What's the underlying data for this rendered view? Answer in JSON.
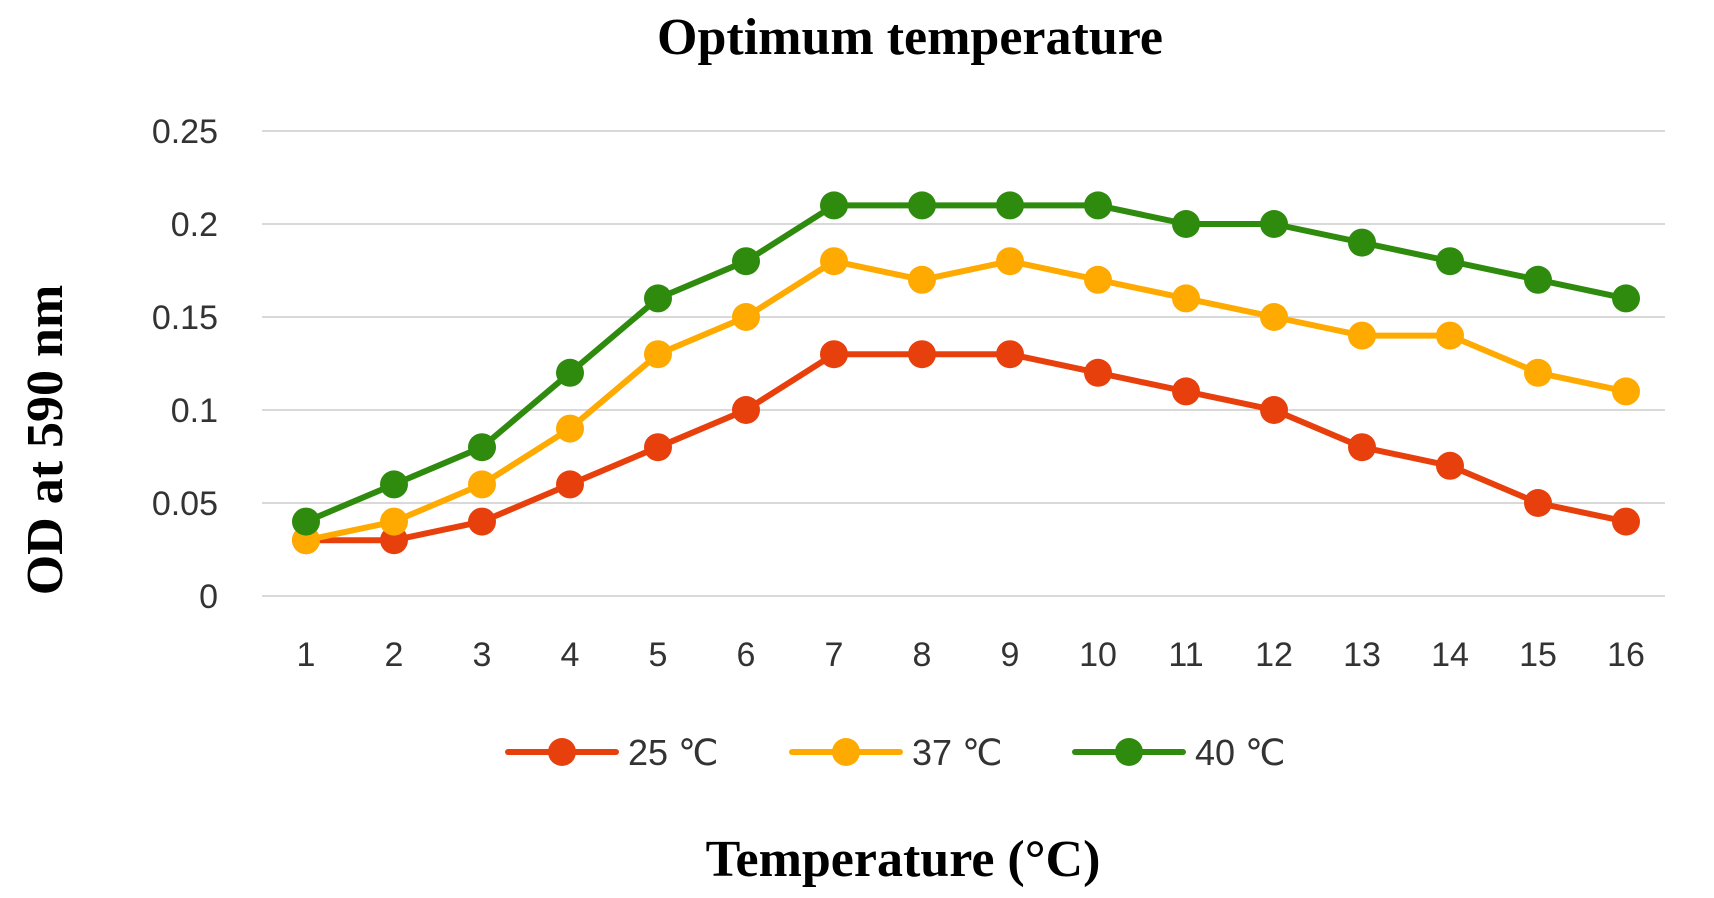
{
  "chart_data": {
    "type": "line",
    "title": "Optimum temperature",
    "xlabel": "Temperature (°C)",
    "ylabel": "OD at 590 nm",
    "x": [
      1,
      2,
      3,
      4,
      5,
      6,
      7,
      8,
      9,
      10,
      11,
      12,
      13,
      14,
      15,
      16
    ],
    "x_tick_labels": [
      "1",
      "2",
      "3",
      "4",
      "5",
      "6",
      "7",
      "8",
      "9",
      "10",
      "11",
      "12",
      "13",
      "14",
      "15",
      "16"
    ],
    "ylim": [
      0,
      0.25
    ],
    "y_ticks": [
      0,
      0.05,
      0.1,
      0.15,
      0.2,
      0.25
    ],
    "y_tick_labels": [
      "0",
      "0.05",
      "0.1",
      "0.15",
      "0.2",
      "0.25"
    ],
    "grid": "horizontal",
    "legend_position": "bottom",
    "series": [
      {
        "name": "25 ℃",
        "color": "#e8400c",
        "values": [
          0.03,
          0.03,
          0.04,
          0.06,
          0.08,
          0.1,
          0.13,
          0.13,
          0.13,
          0.12,
          0.11,
          0.1,
          0.08,
          0.07,
          0.05,
          0.04
        ]
      },
      {
        "name": "37 ℃",
        "color": "#ffaa00",
        "values": [
          0.03,
          0.04,
          0.06,
          0.09,
          0.13,
          0.15,
          0.18,
          0.17,
          0.18,
          0.17,
          0.16,
          0.15,
          0.14,
          0.14,
          0.12,
          0.11
        ]
      },
      {
        "name": "40 ℃",
        "color": "#2e8b0e",
        "values": [
          0.04,
          0.06,
          0.08,
          0.12,
          0.16,
          0.18,
          0.21,
          0.21,
          0.21,
          0.21,
          0.2,
          0.2,
          0.19,
          0.18,
          0.17,
          0.16
        ]
      }
    ]
  }
}
